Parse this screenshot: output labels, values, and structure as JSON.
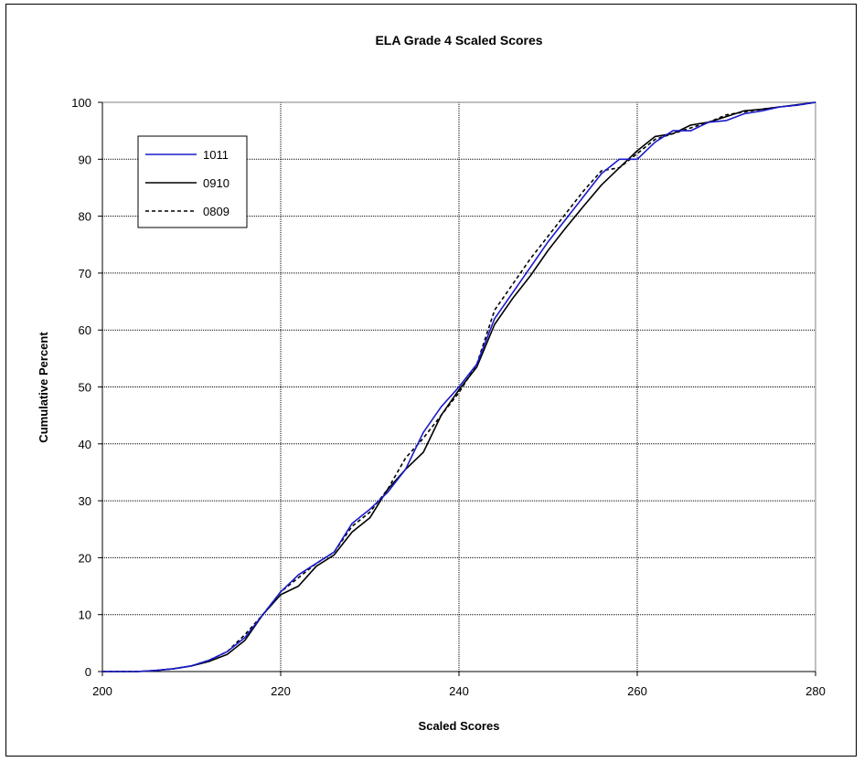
{
  "chart_data": {
    "type": "line",
    "title": "ELA  Grade 4 Scaled Scores",
    "xlabel": "Scaled Scores",
    "ylabel": "Cumulative Percent",
    "xlim": [
      200,
      280
    ],
    "ylim": [
      0,
      100
    ],
    "x_ticks": [
      200,
      220,
      240,
      260,
      280
    ],
    "y_ticks": [
      0,
      10,
      20,
      30,
      40,
      50,
      60,
      70,
      80,
      90,
      100
    ],
    "grid": true,
    "legend_position": "top-left",
    "series": [
      {
        "name": "1011",
        "color": "#1a1acc",
        "dash": "solid",
        "x": [
          200,
          204,
          206,
          208,
          210,
          212,
          214,
          216,
          218,
          220,
          222,
          224,
          226,
          228,
          230,
          232,
          234,
          236,
          238,
          240,
          242,
          244,
          246,
          248,
          250,
          252,
          254,
          256,
          258,
          260,
          262,
          264,
          266,
          268,
          270,
          272,
          274,
          276,
          278,
          280
        ],
        "y": [
          0,
          0,
          0.2,
          0.5,
          1,
          2,
          3.5,
          6,
          10,
          14,
          17,
          19,
          21,
          26,
          28.5,
          31.5,
          35.5,
          42,
          46.5,
          50,
          54,
          62,
          66.5,
          71,
          75.5,
          79.5,
          83.5,
          87.5,
          90,
          90,
          93,
          95,
          95,
          96.5,
          96.8,
          98,
          98.5,
          99.2,
          99.5,
          100
        ]
      },
      {
        "name": "0910",
        "color": "#000000",
        "dash": "solid",
        "x": [
          200,
          204,
          206,
          208,
          210,
          212,
          214,
          216,
          218,
          220,
          222,
          224,
          226,
          228,
          230,
          232,
          234,
          236,
          238,
          240,
          242,
          244,
          246,
          248,
          250,
          252,
          254,
          256,
          258,
          260,
          262,
          264,
          266,
          268,
          270,
          272,
          274,
          276,
          278,
          280
        ],
        "y": [
          0,
          0,
          0.2,
          0.5,
          1,
          1.8,
          3,
          5.5,
          10,
          13.5,
          15,
          18.5,
          20.5,
          24.5,
          27,
          32,
          35.5,
          38.5,
          45,
          49.5,
          53.5,
          61,
          65.5,
          69.5,
          74,
          78,
          81.8,
          85.5,
          88.5,
          91.5,
          94,
          94.5,
          96,
          96.5,
          97.5,
          98.5,
          98.8,
          99.2,
          99.6,
          100
        ]
      },
      {
        "name": "0809",
        "color": "#000000",
        "dash": "dashed",
        "x": [
          200,
          204,
          206,
          208,
          210,
          212,
          214,
          216,
          218,
          220,
          222,
          224,
          226,
          228,
          230,
          232,
          234,
          236,
          238,
          240,
          242,
          244,
          246,
          248,
          250,
          252,
          254,
          256,
          258,
          260,
          262,
          264,
          266,
          268,
          270,
          272,
          274,
          276,
          278,
          280
        ],
        "y": [
          0,
          0,
          0.2,
          0.5,
          1,
          2,
          3.5,
          6.5,
          10,
          14,
          16.5,
          19,
          21,
          25.5,
          28,
          32,
          37.5,
          41,
          45,
          49,
          54,
          63.5,
          68,
          72.5,
          76.5,
          80.5,
          84.5,
          88,
          88.5,
          91,
          93.5,
          94.5,
          95.5,
          96.5,
          97.8,
          98.3,
          98.8,
          99.2,
          99.5,
          100
        ]
      }
    ]
  }
}
